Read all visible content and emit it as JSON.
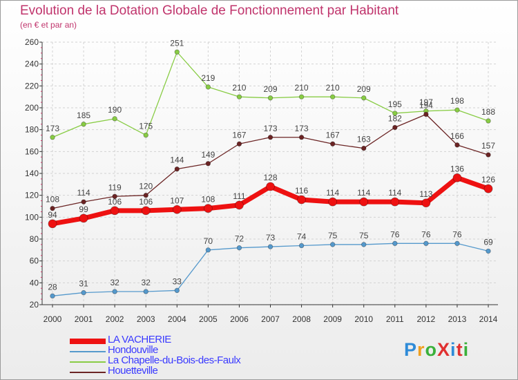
{
  "header": {
    "title": "Evolution de la Dotation Globale de Fonctionnement par Habitant",
    "subtitle": "(en € et par an)"
  },
  "logo": {
    "text": "ProXiti",
    "colors": [
      "#2e8bd8",
      "#f0a020",
      "#3ab03a",
      "#e03030",
      "#2e8bd8",
      "#e03030",
      "#3ab03a"
    ]
  },
  "chart_data": {
    "type": "line",
    "title": "Evolution de la Dotation Globale de Fonctionnement par Habitant",
    "subtitle": "(en € et par an)",
    "xlabel": "",
    "ylabel": "",
    "ylim": [
      20,
      260
    ],
    "yticks": [
      20,
      40,
      60,
      80,
      100,
      120,
      140,
      160,
      180,
      200,
      220,
      240,
      260
    ],
    "grid": true,
    "legend_position": "bottom-left",
    "categories": [
      "2000",
      "2001",
      "2002",
      "2003",
      "2004",
      "2005",
      "2006",
      "2007",
      "2008",
      "2009",
      "2010",
      "2011",
      "2012",
      "2013",
      "2014"
    ],
    "series": [
      {
        "name": "LA VACHERIE",
        "color": "#ee1111",
        "emphasis": true,
        "values": [
          94,
          99,
          106,
          106,
          107,
          108,
          111,
          128,
          116,
          114,
          114,
          114,
          113,
          136,
          126
        ]
      },
      {
        "name": "Hondouville",
        "color": "#5599cc",
        "emphasis": false,
        "values": [
          28,
          31,
          32,
          32,
          33,
          70,
          72,
          73,
          74,
          75,
          75,
          76,
          76,
          76,
          69
        ]
      },
      {
        "name": "La Chapelle-du-Bois-des-Faulx",
        "color": "#88cc44",
        "emphasis": false,
        "values": [
          173,
          185,
          190,
          175,
          251,
          219,
          210,
          209,
          210,
          210,
          209,
          195,
          197,
          198,
          188
        ]
      },
      {
        "name": "Houetteville",
        "color": "#6b2424",
        "emphasis": false,
        "values": [
          108,
          114,
          119,
          120,
          144,
          149,
          167,
          173,
          173,
          167,
          163,
          182,
          194,
          166,
          157
        ]
      }
    ]
  }
}
